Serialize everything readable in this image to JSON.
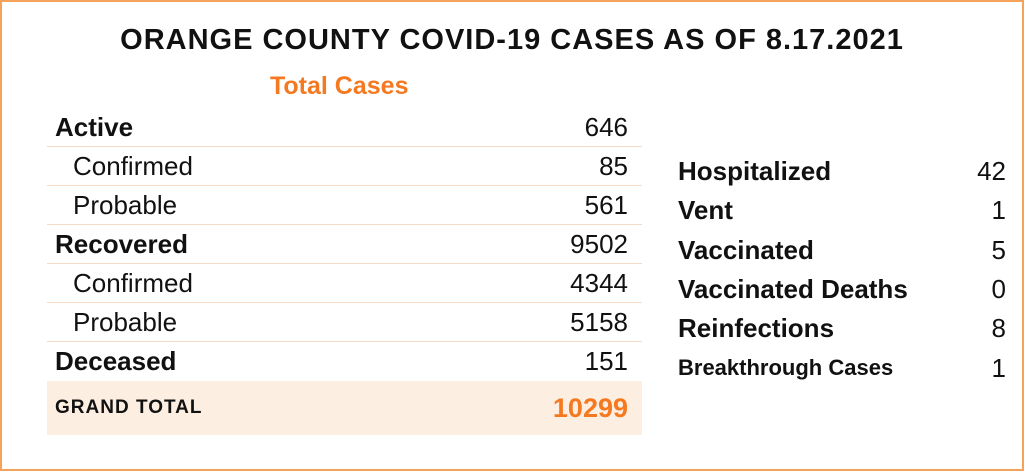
{
  "title": "ORANGE COUNTY COVID-19 CASES AS OF 8.17.2021",
  "subtitle": "Total Cases",
  "cases": [
    {
      "label": "Active",
      "value": "646",
      "type": "main"
    },
    {
      "label": "Confirmed",
      "value": "85",
      "type": "sub"
    },
    {
      "label": "Probable",
      "value": "561",
      "type": "sub"
    },
    {
      "label": "Recovered",
      "value": "9502",
      "type": "main"
    },
    {
      "label": "Confirmed",
      "value": "4344",
      "type": "sub"
    },
    {
      "label": "Probable",
      "value": "5158",
      "type": "sub"
    },
    {
      "label": "Deceased",
      "value": "151",
      "type": "main"
    }
  ],
  "grand_total": {
    "label": "GRAND TOTAL",
    "value": "10299"
  },
  "stats": [
    {
      "label": "Hospitalized",
      "value": "42"
    },
    {
      "label": "Vent",
      "value": "1"
    },
    {
      "label": "Vaccinated",
      "value": "5"
    },
    {
      "label": "Vaccinated Deaths",
      "value": "0"
    },
    {
      "label": "Reinfections",
      "value": "8"
    },
    {
      "label": "Breakthrough Cases",
      "value": "1"
    }
  ],
  "colors": {
    "accent": "#f47920",
    "border": "#f5a35a",
    "total_bg": "#fdeee2"
  }
}
